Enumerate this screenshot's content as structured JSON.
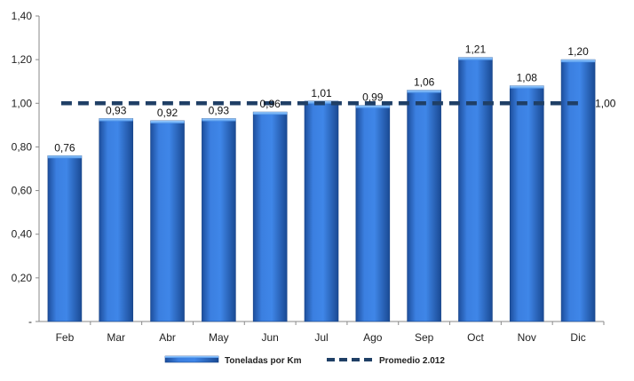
{
  "chart_data": {
    "type": "bar",
    "categories": [
      "Feb",
      "Mar",
      "Abr",
      "May",
      "Jun",
      "Jul",
      "Ago",
      "Sep",
      "Oct",
      "Nov",
      "Dic"
    ],
    "series": [
      {
        "name": "Toneladas por Km",
        "type": "bar",
        "values": [
          0.76,
          0.93,
          0.92,
          0.93,
          0.96,
          1.01,
          0.99,
          1.06,
          1.21,
          1.08,
          1.2
        ],
        "labels": [
          "0,76",
          "0,93",
          "0,92",
          "0,93",
          "0,96",
          "1,01",
          "0,99",
          "1,06",
          "1,21",
          "1,08",
          "1,20"
        ],
        "color": "#2e6fcf"
      },
      {
        "name": "Promedio 2.012",
        "type": "line",
        "style": "dashed",
        "value": 1.0,
        "label": "1,00",
        "color": "#1f3f66"
      }
    ],
    "ylim": [
      0,
      1.4
    ],
    "yticks": [
      0,
      0.2,
      0.4,
      0.6,
      0.8,
      1.0,
      1.2,
      1.4
    ],
    "ytick_labels": [
      "-",
      "0,20",
      "0,40",
      "0,60",
      "0,80",
      "1,00",
      "1,20",
      "1,40"
    ],
    "grid": false,
    "legend_position": "bottom"
  }
}
